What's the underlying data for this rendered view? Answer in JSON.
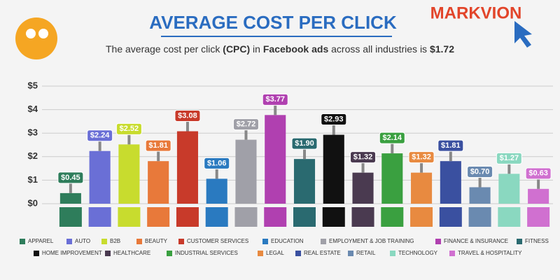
{
  "chart_data": {
    "type": "bar",
    "title": "AVERAGE COST PER CLICK",
    "subtitle_parts": [
      {
        "text": "The average cost per click ",
        "bold": false
      },
      {
        "text": "(CPC)",
        "bold": true
      },
      {
        "text": " in ",
        "bold": false
      },
      {
        "text": "Facebook ads",
        "bold": true
      },
      {
        "text": " across all industries is ",
        "bold": false
      },
      {
        "text": "$1.72",
        "bold": true
      }
    ],
    "brand": "MARKVION",
    "categories": [
      "APPAREL",
      "AUTO",
      "B2B",
      "BEAUTY",
      "CUSTOMER SERVICES",
      "EDUCATION",
      "EMPLOYMENT & JOB TRAINING",
      "FINANCE & INSURANCE",
      "FITNESS",
      "HOME IMPROVEMENT",
      "HEALTHCARE",
      "INDUSTRIAL SERVICES",
      "LEGAL",
      "REAL ESTATE",
      "RETAIL",
      "TECHNOLOGY",
      "TRAVEL & HOSPITALITY"
    ],
    "values": [
      0.45,
      2.24,
      2.52,
      1.81,
      3.08,
      1.06,
      2.72,
      3.77,
      1.9,
      2.93,
      1.32,
      2.14,
      1.32,
      1.81,
      0.7,
      1.27,
      0.63
    ],
    "value_labels": [
      "$0.45",
      "$2.24",
      "$2.52",
      "$1.81",
      "$3.08",
      "$1.06",
      "$2.72",
      "$3.77",
      "$1.90",
      "$2.93",
      "$1.32",
      "$2.14",
      "$1.32",
      "$1.81",
      "$0.70",
      "$1.27",
      "$0.63"
    ],
    "colors": [
      "#2e7d5b",
      "#6a6fd6",
      "#c8dc2e",
      "#e8793a",
      "#c83a2a",
      "#2a7ac0",
      "#a0a0a8",
      "#b040b0",
      "#2a6a70",
      "#111111",
      "#4a3a50",
      "#3aa040",
      "#e88a40",
      "#3a50a0",
      "#6a8ab0",
      "#8ad8c0",
      "#d070d0"
    ],
    "ylim": [
      0,
      5
    ],
    "yticks": [
      {
        "value": 0,
        "label": "$0"
      },
      {
        "value": 1,
        "label": "$1"
      },
      {
        "value": 2,
        "label": "$2"
      },
      {
        "value": 3,
        "label": "$3"
      },
      {
        "value": 4,
        "label": "$4"
      },
      {
        "value": 5,
        "label": "$5"
      }
    ],
    "grid": true
  }
}
